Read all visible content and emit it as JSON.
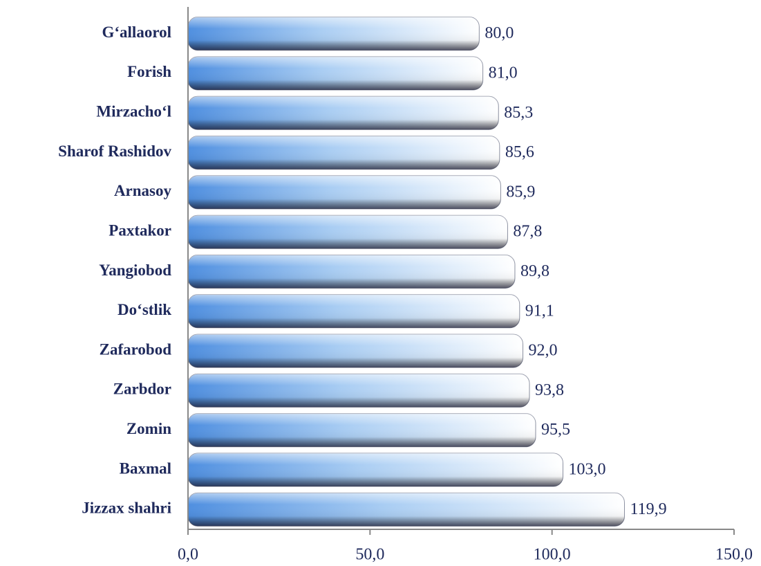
{
  "chart_data": {
    "type": "bar",
    "orientation": "horizontal",
    "categories": [
      "G‘allaorol",
      "Forish",
      "Mirzacho‘l",
      "Sharof Rashidov",
      "Arnasoy",
      "Paxtakor",
      "Yangiobod",
      "Do‘stlik",
      "Zafarobod",
      "Zarbdor",
      "Zomin",
      "Baxmal",
      "Jizzax shahri"
    ],
    "values": [
      80.0,
      81.0,
      85.3,
      85.6,
      85.9,
      87.8,
      89.8,
      91.1,
      92.0,
      93.8,
      95.5,
      103.0,
      119.9
    ],
    "value_labels": [
      "80,0",
      "81,0",
      "85,3",
      "85,6",
      "85,9",
      "87,8",
      "89,8",
      "91,1",
      "92,0",
      "93,8",
      "95,5",
      "103,0",
      "119,9"
    ],
    "color": "#5b9bd5",
    "xlim": [
      0,
      150
    ],
    "xticks": [
      {
        "value": 0,
        "label": "0,0"
      },
      {
        "value": 50,
        "label": "50,0"
      },
      {
        "value": 100,
        "label": "100,0"
      },
      {
        "value": 150,
        "label": "150,0"
      }
    ],
    "grid": false
  }
}
